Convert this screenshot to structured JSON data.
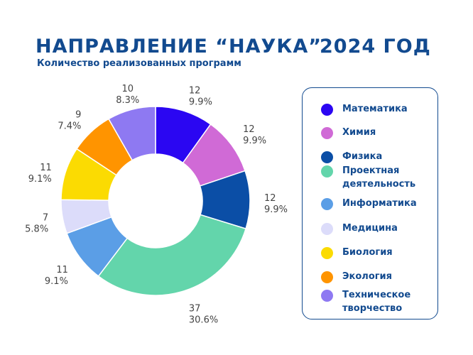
{
  "header": {
    "title": "НАПРАВЛЕНИЕ “НАУКА”",
    "year": "2024 ГОД",
    "subtitle": "Количество реализованных программ"
  },
  "chart_data": {
    "type": "pie",
    "donut": true,
    "title": "НАПРАВЛЕНИЕ “НАУКА” 2024 ГОД",
    "subtitle": "Количество реализованных программ",
    "legend_position": "right",
    "slices": [
      {
        "label": "Математика",
        "value": 12,
        "percent": "9.9%",
        "color": "#2b06f2"
      },
      {
        "label": "Химия",
        "value": 12,
        "percent": "9.9%",
        "color": "#d06ad6"
      },
      {
        "label": "Физика",
        "value": 12,
        "percent": "9.9%",
        "color": "#0b4ea6"
      },
      {
        "label": "Проектная деятельность",
        "value": 37,
        "percent": "30.6%",
        "color": "#63d5ab"
      },
      {
        "label": "Информатика",
        "value": 11,
        "percent": "9.1%",
        "color": "#5b9ee6"
      },
      {
        "label": "Медицина",
        "value": 7,
        "percent": "5.8%",
        "color": "#dcdcfa"
      },
      {
        "label": "Биология",
        "value": 11,
        "percent": "9.1%",
        "color": "#fbdb02"
      },
      {
        "label": "Экология",
        "value": 9,
        "percent": "7.4%",
        "color": "#ff9400"
      },
      {
        "label": "Техническое творчество",
        "value": 10,
        "percent": "8.3%",
        "color": "#8e79f2"
      }
    ]
  }
}
